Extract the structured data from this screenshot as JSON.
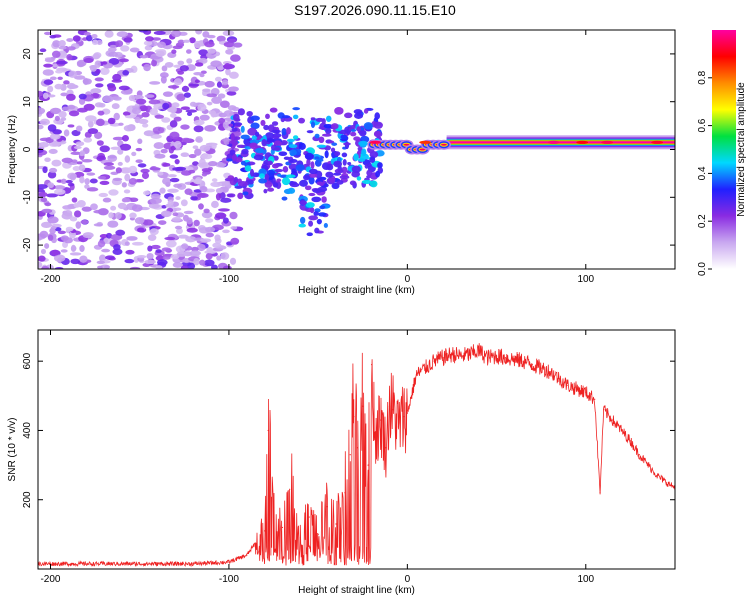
{
  "title": "S197.2026.090.11.15.E10",
  "chart_data": [
    {
      "type": "heatmap",
      "name": "spectrogram",
      "xlabel": "Height of straight line (km)",
      "ylabel": "Frequency (Hz)",
      "xlim": [
        -207,
        150
      ],
      "ylim": [
        -25,
        25
      ],
      "xticks": [
        -200,
        -100,
        0,
        100
      ],
      "xtick_labels": [
        "-200",
        "-100",
        "0",
        "100"
      ],
      "yticks": [
        -20,
        -10,
        0,
        10,
        20
      ],
      "ytick_labels": [
        "-20",
        "-10",
        "0",
        "10",
        "20"
      ],
      "colorbar": {
        "label": "Normalized spectral amplitude",
        "range": [
          0,
          1
        ],
        "ticks": [
          0.0,
          0.2,
          0.4,
          0.6,
          0.8
        ],
        "tick_labels": [
          "0.0",
          "0.2",
          "0.4",
          "0.6",
          "0.8"
        ],
        "colors": [
          "#ffffff",
          "#c9a8f0",
          "#8a2be2",
          "#2020ff",
          "#00d8ff",
          "#00e040",
          "#ffff00",
          "#ff8c00",
          "#ff0000",
          "#ff00a0"
        ]
      },
      "regions": [
        {
          "x": [
            -207,
            -100
          ],
          "y": [
            -25,
            25
          ],
          "description_value": 0.2
        },
        {
          "x": [
            -100,
            -20
          ],
          "y": [
            -18,
            8
          ],
          "description_value": 0.35
        },
        {
          "x": [
            -20,
            150
          ],
          "y": [
            0,
            3
          ],
          "description_value": 1.0
        }
      ]
    },
    {
      "type": "line",
      "name": "snr",
      "xlabel": "Height of straight line (km)",
      "ylabel": "SNR (10 * v/v)",
      "xlim": [
        -207,
        150
      ],
      "ylim": [
        0,
        690
      ],
      "xticks": [
        -200,
        -100,
        0,
        100
      ],
      "xtick_labels": [
        "-200",
        "-100",
        "0",
        "100"
      ],
      "yticks": [
        200,
        400,
        600
      ],
      "ytick_labels": [
        "200",
        "400",
        "600"
      ],
      "color": "#ee2222",
      "series": [
        {
          "name": "SNR",
          "x": [
            -207,
            -180,
            -150,
            -120,
            -100,
            -90,
            -80,
            -78,
            -75,
            -70,
            -65,
            -60,
            -55,
            -50,
            -45,
            -40,
            -35,
            -32,
            -30,
            -28,
            -25,
            -22,
            -20,
            -18,
            -15,
            -12,
            -10,
            -8,
            -5,
            -2,
            0,
            5,
            10,
            15,
            20,
            25,
            30,
            35,
            40,
            45,
            50,
            55,
            60,
            65,
            70,
            75,
            80,
            85,
            90,
            95,
            100,
            105,
            108,
            110,
            115,
            120,
            125,
            130,
            135,
            140,
            145,
            150
          ],
          "y": [
            15,
            15,
            15,
            15,
            20,
            40,
            110,
            400,
            150,
            120,
            230,
            90,
            150,
            100,
            180,
            130,
            220,
            330,
            440,
            350,
            470,
            300,
            590,
            380,
            430,
            350,
            470,
            460,
            410,
            440,
            450,
            560,
            580,
            600,
            610,
            620,
            615,
            620,
            630,
            610,
            615,
            610,
            605,
            600,
            590,
            580,
            570,
            550,
            530,
            520,
            510,
            490,
            220,
            460,
            430,
            400,
            370,
            330,
            300,
            270,
            250,
            235
          ]
        }
      ]
    }
  ]
}
